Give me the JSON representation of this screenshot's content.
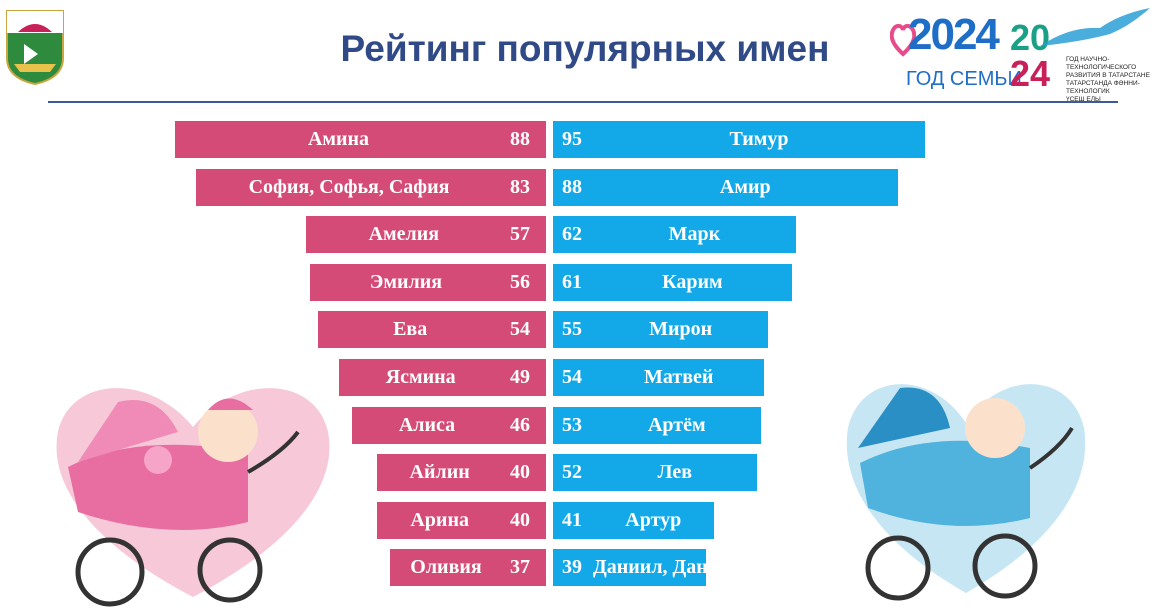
{
  "title": "Рейтинг популярных имен",
  "logo": {
    "year": "2024",
    "subtitle": "ГОД СЕМЬИ",
    "year2_top": "20",
    "year2_bottom": "24",
    "caption_1": "ГОД НАУЧНО-ТЕХНОЛОГИЧЕСКОГО",
    "caption_2": "РАЗВИТИЯ В ТАТАРСТАНЕ",
    "caption_3": "ТАТАРСТАНДА ФӘННИ-ТЕХНОЛОГИК",
    "caption_4": "ҮСЕШ ЕЛЫ"
  },
  "colors": {
    "girls": "#d34b76",
    "boys": "#13a9e9",
    "title": "#2f4a87"
  },
  "chart_data": {
    "type": "bar",
    "orientation": "horizontal",
    "layout": "back-to-back",
    "series": [
      {
        "side": "left",
        "color": "#d34b76",
        "categories": [
          "Амина",
          "София, Софья, Сафия",
          "Амелия",
          "Эмилия",
          "Ева",
          "Ясмина",
          "Алиса",
          "Айлин",
          "Арина",
          "Оливия"
        ],
        "values": [
          88,
          83,
          57,
          56,
          54,
          49,
          46,
          40,
          40,
          37
        ]
      },
      {
        "side": "right",
        "color": "#13a9e9",
        "categories": [
          "Тимур",
          "Амир",
          "Марк",
          "Карим",
          "Мирон",
          "Матвей",
          "Артём",
          "Лев",
          "Артур",
          "Даниил, Данил"
        ],
        "values": [
          95,
          88,
          62,
          61,
          55,
          54,
          53,
          52,
          41,
          39
        ]
      }
    ]
  }
}
